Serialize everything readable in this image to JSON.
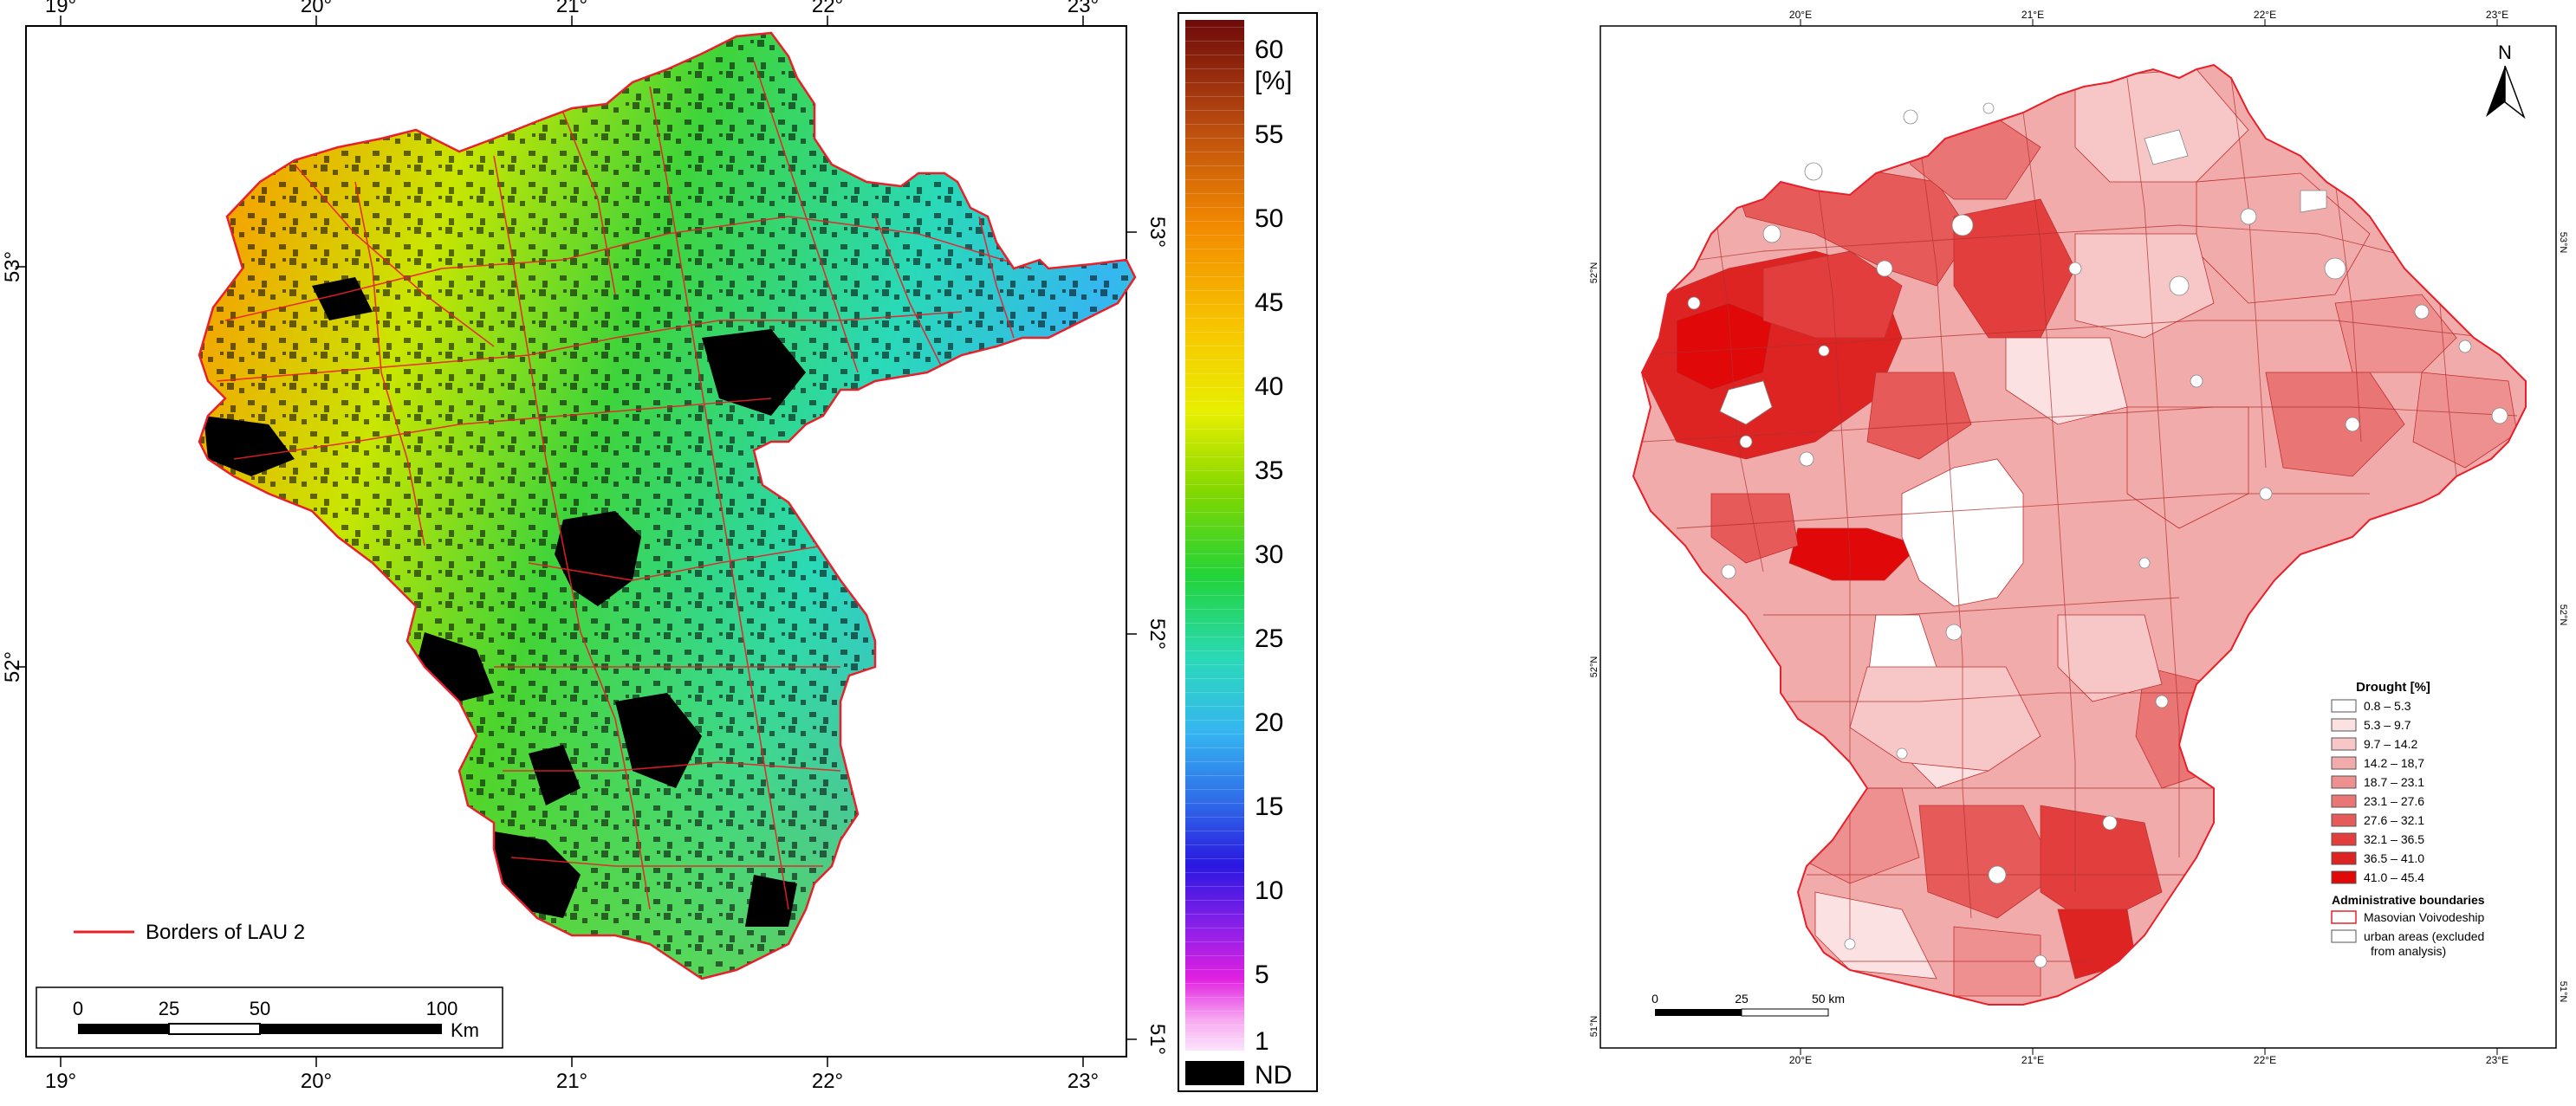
{
  "left_map": {
    "top_lon_labels": [
      "19°",
      "20°",
      "21°",
      "22°",
      "23°"
    ],
    "bottom_lon_labels": [
      "19°",
      "20°",
      "21°",
      "22°",
      "23°"
    ],
    "left_lat_labels": [
      "53°",
      "52°"
    ],
    "right_lat_labels": [
      "53°",
      "52°",
      "51°"
    ],
    "legend_line_label": "Borders of LAU 2",
    "scale_labels": [
      "0",
      "25",
      "50",
      "100"
    ],
    "scale_unit": "Km",
    "border_color": "#e8202a",
    "nodata_color": "#000000"
  },
  "colorbar": {
    "tick_labels": [
      "60",
      "55",
      "50",
      "45",
      "40",
      "35",
      "30",
      "25",
      "20",
      "15",
      "10",
      "5",
      "1"
    ],
    "unit": "[%]",
    "nodata_label": "ND",
    "stops": [
      "#6e0a0a",
      "#b84a10",
      "#f28a00",
      "#f7c600",
      "#e8ef00",
      "#7fd600",
      "#22d33a",
      "#2ad9b8",
      "#35b6f0",
      "#2f6ae8",
      "#2a18e0",
      "#8a20e8",
      "#e020e0",
      "#f7a8f0",
      "#fbe4fb"
    ]
  },
  "right_map": {
    "top_lon_labels": [
      "20°E",
      "21°E",
      "22°E",
      "23°E"
    ],
    "bottom_lon_labels": [
      "20°E",
      "21°E",
      "22°E",
      "23°E"
    ],
    "left_lat_labels": [
      "52°N",
      "52°N",
      "51°N"
    ],
    "right_lat_labels": [
      "53°N",
      "52°N",
      "51°N"
    ],
    "north_label": "N",
    "scale_labels": [
      "0",
      "25",
      "50 km"
    ],
    "legend_title": "Drought [%]",
    "legend_classes": [
      {
        "label": "0.8 – 5.3",
        "color": "#ffffff"
      },
      {
        "label": "5.3 – 9.7",
        "color": "#fbe1e1"
      },
      {
        "label": "9.7 – 14.2",
        "color": "#f7c6c6"
      },
      {
        "label": "14.2 – 18,7",
        "color": "#f2abab"
      },
      {
        "label": "18.7 – 23.1",
        "color": "#ee9090"
      },
      {
        "label": "23.1 – 27.6",
        "color": "#ea7575"
      },
      {
        "label": "27.6 – 32.1",
        "color": "#e65a5a"
      },
      {
        "label": "32.1 – 36.5",
        "color": "#e23e3e"
      },
      {
        "label": "36.5 – 41.0",
        "color": "#de2323"
      },
      {
        "label": "41.0 – 45.4",
        "color": "#e00808"
      }
    ],
    "admin_title": "Administrative boundaries",
    "admin_items": [
      "Masovian Voivodeship",
      "urban areas (excluded",
      "from analysis)"
    ]
  }
}
